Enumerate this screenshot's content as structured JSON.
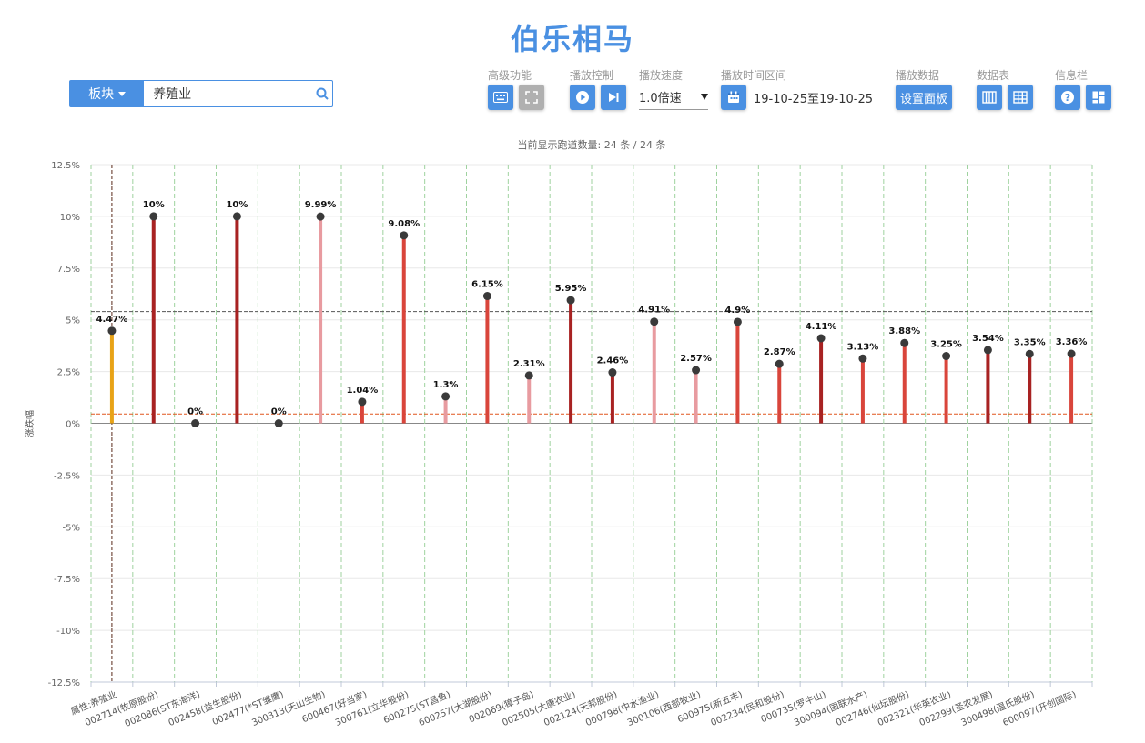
{
  "header": {
    "title": "伯乐相马"
  },
  "search": {
    "sector_label": "板块",
    "value": "养殖业"
  },
  "controls": {
    "advanced_label": "高级功能",
    "play_label": "播放控制",
    "speed_label": "播放速度",
    "speed_value": "1.0倍速",
    "range_label": "播放时间区间",
    "range_value": "19-10-25至19-10-25",
    "data_label": "播放数据",
    "data_button": "设置面板",
    "table_label": "数据表",
    "info_label": "信息栏"
  },
  "count_text": "当前显示跑道数量: 24 条 / 24 条",
  "colors": {
    "accent": "#4a90e2",
    "dark_red": "#a82222",
    "red": "#d9453b",
    "pink": "#e89ba0",
    "orange": "#e8a317"
  },
  "chart_data": {
    "type": "bar",
    "ylabel": "涨跌幅",
    "ylim": [
      -12.5,
      12.5
    ],
    "yticks": [
      "12.5%",
      "10%",
      "7.5%",
      "5%",
      "2.5%",
      "0%",
      "-2.5%",
      "-5%",
      "-7.5%",
      "-10%",
      "-12.5%"
    ],
    "reference_lines": [
      5.4,
      0.45
    ],
    "categories": [
      "属性:养殖业",
      "002714(牧原股份)",
      "002086(ST东海洋)",
      "002458(益生股份)",
      "002477(*ST雏鹰)",
      "300313(天山生物)",
      "600467(好当家)",
      "300761(立华股份)",
      "600275(ST昌鱼)",
      "600257(大湖股份)",
      "002069(獐子岛)",
      "002505(大康农业)",
      "002124(天邦股份)",
      "000798(中水渔业)",
      "300106(西部牧业)",
      "600975(新五丰)",
      "002234(民和股份)",
      "000735(罗牛山)",
      "300094(国联水产)",
      "002746(仙坛股份)",
      "002321(华英农业)",
      "002299(圣农发展)",
      "300498(温氏股份)",
      "600097(开创国际)"
    ],
    "values": [
      4.47,
      10,
      0,
      10,
      0,
      9.99,
      1.04,
      9.08,
      1.3,
      6.15,
      2.31,
      5.95,
      2.46,
      4.91,
      2.57,
      4.9,
      2.87,
      4.11,
      3.13,
      3.88,
      3.25,
      3.54,
      3.35,
      3.36
    ],
    "labels": [
      "4.47%",
      "10%",
      "0%",
      "10%",
      "0%",
      "9.99%",
      "1.04%",
      "9.08%",
      "1.3%",
      "6.15%",
      "2.31%",
      "5.95%",
      "2.46%",
      "4.91%",
      "2.57%",
      "4.9%",
      "2.87%",
      "4.11%",
      "3.13%",
      "3.88%",
      "3.25%",
      "3.54%",
      "3.35%",
      "3.36%"
    ],
    "bar_colors": [
      "#e8a317",
      "#a82222",
      "#a82222",
      "#a82222",
      "#a82222",
      "#e89ba0",
      "#d9453b",
      "#d9453b",
      "#e89ba0",
      "#d9453b",
      "#e89ba0",
      "#a82222",
      "#a82222",
      "#e89ba0",
      "#e89ba0",
      "#d9453b",
      "#d9453b",
      "#a82222",
      "#d9453b",
      "#d9453b",
      "#d9453b",
      "#a82222",
      "#a82222",
      "#d9453b"
    ]
  }
}
